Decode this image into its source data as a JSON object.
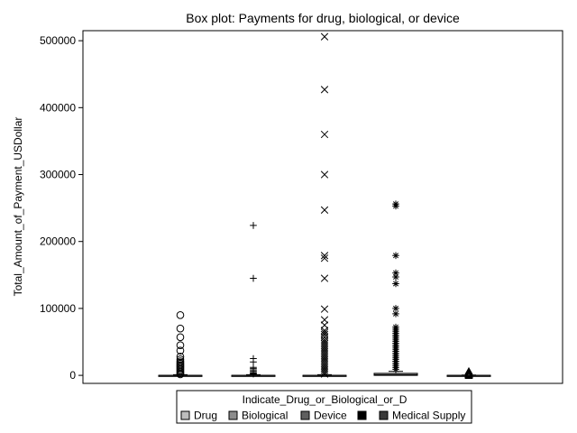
{
  "chart_data": {
    "type": "box",
    "title": "Box plot: Payments for drug, biological, or device",
    "xlabel": "",
    "ylabel": "Total_Amount_of_Payment_USDollar",
    "ylim": [
      -12000,
      515000
    ],
    "yticks": [
      0,
      100000,
      200000,
      300000,
      400000,
      500000
    ],
    "ytick_labels": [
      "0",
      "100000",
      "200000",
      "300000",
      "400000",
      "500000"
    ],
    "grid": false,
    "legend": {
      "title": "Indicate_Drug_or_Biological_or_D",
      "placement": "bottom",
      "entries": [
        {
          "label": "Drug",
          "color": "#bdbdbd"
        },
        {
          "label": "Biological",
          "color": "#8c8c8c"
        },
        {
          "label": "Device",
          "color": "#5f5f5f"
        },
        {
          "label": "",
          "color": "#000000"
        },
        {
          "label": "Medical Supply",
          "color": "#3a3a3a"
        }
      ]
    },
    "series": [
      {
        "name": "Drug",
        "marker": "circle",
        "box": {
          "whisker_low": 0,
          "q1": 0,
          "median": 0,
          "q3": 0,
          "whisker_high": 1000
        },
        "outliers": [
          90000,
          70000,
          57000,
          45000,
          37000,
          28000,
          24000,
          21000,
          19000,
          17000,
          15000,
          13000,
          11000,
          9000,
          7000,
          5000,
          3000,
          1500
        ]
      },
      {
        "name": "Biological",
        "marker": "plus",
        "box": {
          "whisker_low": 0,
          "q1": 0,
          "median": 0,
          "q3": 0,
          "whisker_high": 1000
        },
        "outliers": [
          224000,
          145000,
          25000,
          20000,
          12000,
          10000,
          8000,
          6000,
          4000,
          3000,
          2000
        ]
      },
      {
        "name": "Device",
        "marker": "x",
        "box": {
          "whisker_low": 0,
          "q1": 0,
          "median": 0,
          "q3": 0,
          "whisker_high": 1000
        },
        "outliers": [
          506000,
          427000,
          360000,
          300000,
          247000,
          179000,
          175000,
          145000,
          99000,
          83000,
          75000,
          67000,
          64000,
          61000,
          57000,
          53000,
          50000,
          47000,
          44000,
          41000,
          38000,
          35000,
          32000,
          29000,
          26000,
          23000,
          20000,
          17000,
          14000,
          11000,
          8000,
          5000,
          2000
        ]
      },
      {
        "name": "",
        "marker": "star",
        "box": {
          "whisker_low": 0,
          "q1": 0,
          "median": 1000,
          "q3": 3000,
          "whisker_high": 6000
        },
        "outliers": [
          256000,
          253000,
          179000,
          153000,
          147000,
          137000,
          100000,
          92000,
          72000,
          69000,
          66000,
          63000,
          60000,
          57000,
          54000,
          51000,
          48000,
          45000,
          42000,
          39000,
          36000,
          33000,
          30000,
          27000,
          24000,
          21000,
          18000,
          15000,
          12000,
          9000
        ]
      },
      {
        "name": "Medical Supply",
        "marker": "triangle",
        "box": {
          "whisker_low": 0,
          "q1": 0,
          "median": 0,
          "q3": 0,
          "whisker_high": 500
        },
        "outliers": [
          6000,
          4000,
          2500,
          1500,
          800,
          -500
        ]
      }
    ]
  }
}
